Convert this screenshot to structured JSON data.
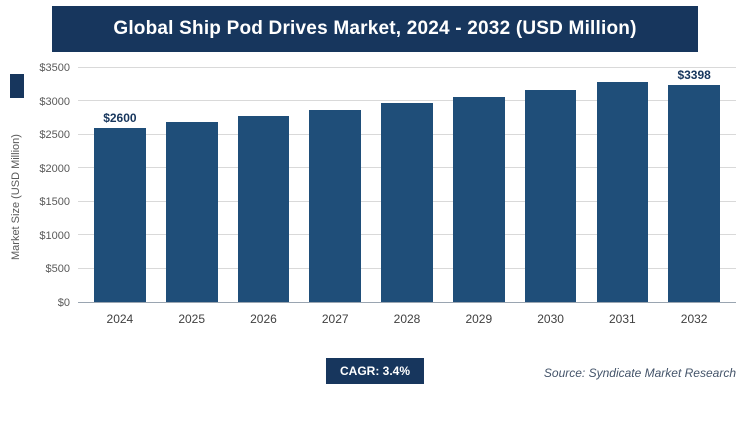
{
  "header": {
    "title": "Global Ship Pod Drives Market, 2024 - 2032 (USD Million)"
  },
  "chart_data": {
    "type": "bar",
    "title": "Global Ship Pod Drives Market, 2024 - 2032 (USD Million)",
    "categories": [
      "2024",
      "2025",
      "2026",
      "2027",
      "2028",
      "2029",
      "2030",
      "2031",
      "2032"
    ],
    "values": [
      2600,
      2688,
      2780,
      2874,
      2972,
      3073,
      3178,
      3286,
      3398
    ],
    "value_labels": {
      "0": "$2600",
      "8": "$3398"
    },
    "xlabel": "",
    "ylabel": "Market Size (USD Million)",
    "ylim": [
      0,
      3500
    ],
    "ytick_step": 500,
    "ytick_labels": [
      "$0",
      "$500",
      "$1000",
      "$1500",
      "$2000",
      "$2500",
      "$3000",
      "$3500"
    ],
    "grid": true,
    "legend": "none",
    "bar_color": "#1f4e79"
  },
  "footer": {
    "cagr_label": "CAGR: 3.4%",
    "source": "Source: Syndicate Market Research"
  },
  "colors": {
    "title_bar": "#17365d",
    "bar": "#1f4e79",
    "gridline": "#d9d9d9",
    "axis_text": "#595959"
  }
}
